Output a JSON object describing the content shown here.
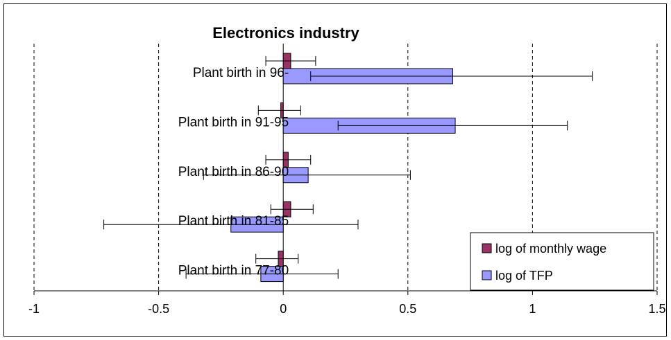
{
  "chart_data": {
    "type": "bar",
    "orientation": "horizontal",
    "title": "Electronics industry",
    "xlabel": "",
    "ylabel": "",
    "xlim": [
      -1,
      1.5
    ],
    "xticks": [
      -1,
      -0.5,
      0,
      0.5,
      1,
      1.5
    ],
    "xtick_labels": [
      "-1",
      "-0.5",
      "0",
      "0.5",
      "1",
      "1.5"
    ],
    "grid": "vertical dashed",
    "legend_position": "bottom-right",
    "categories": [
      "Plant birth in 96-",
      "Plant birth in 91-95",
      "Plant birth in 86-90",
      "Plant birth in 81-85",
      "Plant birth in 77-80"
    ],
    "series": [
      {
        "name": "log of monthly wage",
        "color": "#993366",
        "values": [
          0.03,
          -0.01,
          0.02,
          0.03,
          -0.02
        ],
        "error_low": [
          -0.07,
          -0.1,
          -0.07,
          -0.05,
          -0.11
        ],
        "error_high": [
          0.13,
          0.07,
          0.11,
          0.12,
          0.06
        ]
      },
      {
        "name": "log of TFP",
        "color": "#9999ff",
        "values": [
          0.68,
          0.69,
          0.1,
          -0.21,
          -0.09
        ],
        "error_low": [
          0.11,
          0.22,
          -0.32,
          -0.72,
          -0.39
        ],
        "error_high": [
          1.24,
          1.14,
          0.51,
          0.3,
          0.22
        ]
      }
    ]
  }
}
